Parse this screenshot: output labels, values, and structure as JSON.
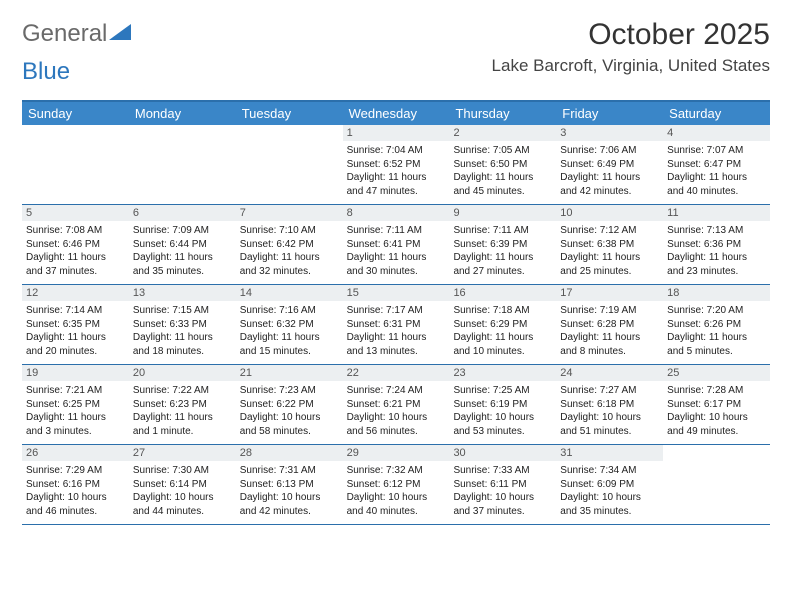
{
  "brand": {
    "part1": "General",
    "part2": "Blue"
  },
  "title": "October 2025",
  "location": "Lake Barcroft, Virginia, United States",
  "colors": {
    "header_bg": "#3a86c8",
    "rule": "#2b6fab",
    "daynum_bg": "#eceff1",
    "logo_gray": "#6a6a6a",
    "logo_blue": "#2d77bd"
  },
  "dow": [
    "Sunday",
    "Monday",
    "Tuesday",
    "Wednesday",
    "Thursday",
    "Friday",
    "Saturday"
  ],
  "weeks": [
    [
      {
        "n": "",
        "sr": "",
        "ss": "",
        "dl1": "",
        "dl2": ""
      },
      {
        "n": "",
        "sr": "",
        "ss": "",
        "dl1": "",
        "dl2": ""
      },
      {
        "n": "",
        "sr": "",
        "ss": "",
        "dl1": "",
        "dl2": ""
      },
      {
        "n": "1",
        "sr": "Sunrise: 7:04 AM",
        "ss": "Sunset: 6:52 PM",
        "dl1": "Daylight: 11 hours",
        "dl2": "and 47 minutes."
      },
      {
        "n": "2",
        "sr": "Sunrise: 7:05 AM",
        "ss": "Sunset: 6:50 PM",
        "dl1": "Daylight: 11 hours",
        "dl2": "and 45 minutes."
      },
      {
        "n": "3",
        "sr": "Sunrise: 7:06 AM",
        "ss": "Sunset: 6:49 PM",
        "dl1": "Daylight: 11 hours",
        "dl2": "and 42 minutes."
      },
      {
        "n": "4",
        "sr": "Sunrise: 7:07 AM",
        "ss": "Sunset: 6:47 PM",
        "dl1": "Daylight: 11 hours",
        "dl2": "and 40 minutes."
      }
    ],
    [
      {
        "n": "5",
        "sr": "Sunrise: 7:08 AM",
        "ss": "Sunset: 6:46 PM",
        "dl1": "Daylight: 11 hours",
        "dl2": "and 37 minutes."
      },
      {
        "n": "6",
        "sr": "Sunrise: 7:09 AM",
        "ss": "Sunset: 6:44 PM",
        "dl1": "Daylight: 11 hours",
        "dl2": "and 35 minutes."
      },
      {
        "n": "7",
        "sr": "Sunrise: 7:10 AM",
        "ss": "Sunset: 6:42 PM",
        "dl1": "Daylight: 11 hours",
        "dl2": "and 32 minutes."
      },
      {
        "n": "8",
        "sr": "Sunrise: 7:11 AM",
        "ss": "Sunset: 6:41 PM",
        "dl1": "Daylight: 11 hours",
        "dl2": "and 30 minutes."
      },
      {
        "n": "9",
        "sr": "Sunrise: 7:11 AM",
        "ss": "Sunset: 6:39 PM",
        "dl1": "Daylight: 11 hours",
        "dl2": "and 27 minutes."
      },
      {
        "n": "10",
        "sr": "Sunrise: 7:12 AM",
        "ss": "Sunset: 6:38 PM",
        "dl1": "Daylight: 11 hours",
        "dl2": "and 25 minutes."
      },
      {
        "n": "11",
        "sr": "Sunrise: 7:13 AM",
        "ss": "Sunset: 6:36 PM",
        "dl1": "Daylight: 11 hours",
        "dl2": "and 23 minutes."
      }
    ],
    [
      {
        "n": "12",
        "sr": "Sunrise: 7:14 AM",
        "ss": "Sunset: 6:35 PM",
        "dl1": "Daylight: 11 hours",
        "dl2": "and 20 minutes."
      },
      {
        "n": "13",
        "sr": "Sunrise: 7:15 AM",
        "ss": "Sunset: 6:33 PM",
        "dl1": "Daylight: 11 hours",
        "dl2": "and 18 minutes."
      },
      {
        "n": "14",
        "sr": "Sunrise: 7:16 AM",
        "ss": "Sunset: 6:32 PM",
        "dl1": "Daylight: 11 hours",
        "dl2": "and 15 minutes."
      },
      {
        "n": "15",
        "sr": "Sunrise: 7:17 AM",
        "ss": "Sunset: 6:31 PM",
        "dl1": "Daylight: 11 hours",
        "dl2": "and 13 minutes."
      },
      {
        "n": "16",
        "sr": "Sunrise: 7:18 AM",
        "ss": "Sunset: 6:29 PM",
        "dl1": "Daylight: 11 hours",
        "dl2": "and 10 minutes."
      },
      {
        "n": "17",
        "sr": "Sunrise: 7:19 AM",
        "ss": "Sunset: 6:28 PM",
        "dl1": "Daylight: 11 hours",
        "dl2": "and 8 minutes."
      },
      {
        "n": "18",
        "sr": "Sunrise: 7:20 AM",
        "ss": "Sunset: 6:26 PM",
        "dl1": "Daylight: 11 hours",
        "dl2": "and 5 minutes."
      }
    ],
    [
      {
        "n": "19",
        "sr": "Sunrise: 7:21 AM",
        "ss": "Sunset: 6:25 PM",
        "dl1": "Daylight: 11 hours",
        "dl2": "and 3 minutes."
      },
      {
        "n": "20",
        "sr": "Sunrise: 7:22 AM",
        "ss": "Sunset: 6:23 PM",
        "dl1": "Daylight: 11 hours",
        "dl2": "and 1 minute."
      },
      {
        "n": "21",
        "sr": "Sunrise: 7:23 AM",
        "ss": "Sunset: 6:22 PM",
        "dl1": "Daylight: 10 hours",
        "dl2": "and 58 minutes."
      },
      {
        "n": "22",
        "sr": "Sunrise: 7:24 AM",
        "ss": "Sunset: 6:21 PM",
        "dl1": "Daylight: 10 hours",
        "dl2": "and 56 minutes."
      },
      {
        "n": "23",
        "sr": "Sunrise: 7:25 AM",
        "ss": "Sunset: 6:19 PM",
        "dl1": "Daylight: 10 hours",
        "dl2": "and 53 minutes."
      },
      {
        "n": "24",
        "sr": "Sunrise: 7:27 AM",
        "ss": "Sunset: 6:18 PM",
        "dl1": "Daylight: 10 hours",
        "dl2": "and 51 minutes."
      },
      {
        "n": "25",
        "sr": "Sunrise: 7:28 AM",
        "ss": "Sunset: 6:17 PM",
        "dl1": "Daylight: 10 hours",
        "dl2": "and 49 minutes."
      }
    ],
    [
      {
        "n": "26",
        "sr": "Sunrise: 7:29 AM",
        "ss": "Sunset: 6:16 PM",
        "dl1": "Daylight: 10 hours",
        "dl2": "and 46 minutes."
      },
      {
        "n": "27",
        "sr": "Sunrise: 7:30 AM",
        "ss": "Sunset: 6:14 PM",
        "dl1": "Daylight: 10 hours",
        "dl2": "and 44 minutes."
      },
      {
        "n": "28",
        "sr": "Sunrise: 7:31 AM",
        "ss": "Sunset: 6:13 PM",
        "dl1": "Daylight: 10 hours",
        "dl2": "and 42 minutes."
      },
      {
        "n": "29",
        "sr": "Sunrise: 7:32 AM",
        "ss": "Sunset: 6:12 PM",
        "dl1": "Daylight: 10 hours",
        "dl2": "and 40 minutes."
      },
      {
        "n": "30",
        "sr": "Sunrise: 7:33 AM",
        "ss": "Sunset: 6:11 PM",
        "dl1": "Daylight: 10 hours",
        "dl2": "and 37 minutes."
      },
      {
        "n": "31",
        "sr": "Sunrise: 7:34 AM",
        "ss": "Sunset: 6:09 PM",
        "dl1": "Daylight: 10 hours",
        "dl2": "and 35 minutes."
      },
      {
        "n": "",
        "sr": "",
        "ss": "",
        "dl1": "",
        "dl2": ""
      }
    ]
  ]
}
